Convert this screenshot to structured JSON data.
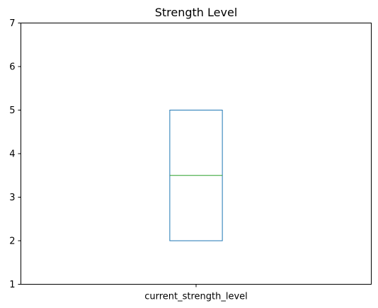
{
  "chart_data": {
    "type": "box",
    "title": "Strength Level",
    "xlabel": "",
    "ylabel": "",
    "categories": [
      "current_strength_level"
    ],
    "ylim": [
      1,
      7
    ],
    "yticks": [
      1,
      2,
      3,
      4,
      5,
      6,
      7
    ],
    "grid": false,
    "boxes": [
      {
        "category": "current_strength_level",
        "whisker_low": 2,
        "q1": 2,
        "median": 3.5,
        "q3": 5,
        "whisker_high": 5
      }
    ],
    "colors": {
      "box": "#1f77b4",
      "median": "#2ca02c",
      "axes": "#000000"
    }
  }
}
